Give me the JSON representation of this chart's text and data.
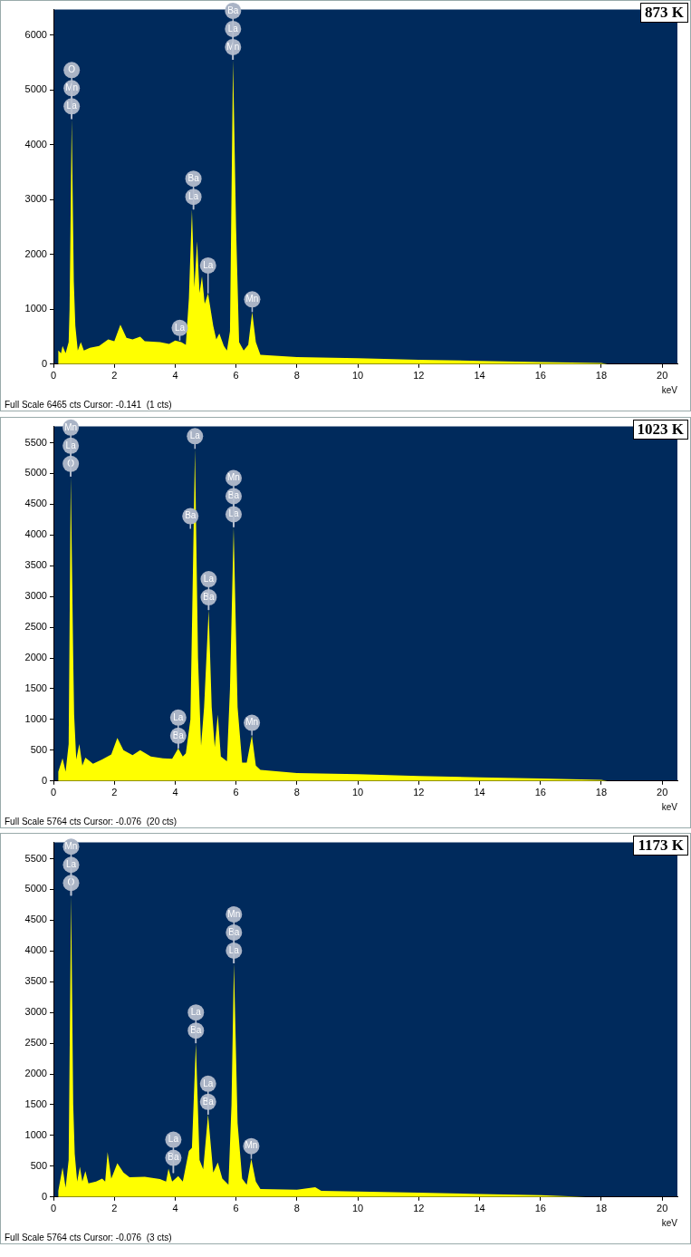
{
  "chart_data": [
    {
      "type": "area",
      "title": "873 K",
      "xlabel": "keV",
      "color": "#ffff00",
      "xlim": [
        0,
        20.5
      ],
      "xticks": [
        0,
        2,
        4,
        6,
        8,
        10,
        12,
        14,
        16,
        18,
        20
      ],
      "ylim": [
        0,
        6465
      ],
      "yticks": [
        0,
        1000,
        2000,
        3000,
        4000,
        5000,
        6000
      ],
      "legend": false,
      "grid": false,
      "x": [
        0.15,
        0.16,
        0.25,
        0.3,
        0.4,
        0.5,
        0.53,
        0.6,
        0.67,
        0.72,
        0.8,
        0.9,
        1.0,
        1.2,
        1.5,
        1.8,
        2.0,
        2.2,
        2.4,
        2.6,
        2.85,
        3.0,
        3.5,
        3.8,
        4.0,
        4.2,
        4.35,
        4.45,
        4.55,
        4.63,
        4.72,
        4.8,
        4.88,
        4.97,
        5.08,
        5.25,
        5.35,
        5.45,
        5.6,
        5.7,
        5.8,
        5.9,
        6.0,
        6.1,
        6.25,
        6.4,
        6.53,
        6.65,
        6.8,
        8,
        10,
        12,
        14,
        16,
        18,
        18.2
      ],
      "values": [
        0,
        250,
        200,
        330,
        200,
        400,
        1000,
        4470,
        1500,
        700,
        250,
        400,
        250,
        300,
        330,
        450,
        420,
        720,
        480,
        450,
        500,
        420,
        400,
        370,
        430,
        400,
        350,
        1200,
        2820,
        1400,
        2240,
        1300,
        1600,
        1100,
        1290,
        700,
        450,
        560,
        330,
        250,
        600,
        5550,
        2500,
        400,
        250,
        350,
        950,
        400,
        170,
        130,
        110,
        80,
        60,
        40,
        20,
        0
      ],
      "annotations": [
        "Full Scale 6465 cts Cursor: -0.141  (1 cts)",
        {
          "text": "La",
          "x": 0.6,
          "y": 4470
        },
        {
          "text": "Mn",
          "x": 0.6,
          "y": 4470
        },
        {
          "text": "O",
          "x": 0.6,
          "y": 4470
        },
        {
          "text": "La",
          "x": 4.15,
          "y": 430
        },
        {
          "text": "La",
          "x": 4.6,
          "y": 2820
        },
        {
          "text": "Ba",
          "x": 4.6,
          "y": 2820
        },
        {
          "text": "La",
          "x": 5.08,
          "y": 1290
        },
        {
          "text": "Mn",
          "x": 5.9,
          "y": 5550
        },
        {
          "text": "La",
          "x": 5.9,
          "y": 5550
        },
        {
          "text": "Ba",
          "x": 5.9,
          "y": 5550
        },
        {
          "text": "Mn",
          "x": 6.53,
          "y": 950
        }
      ]
    },
    {
      "type": "area",
      "title": "1023 K",
      "xlabel": "keV",
      "color": "#ffff00",
      "xlim": [
        0,
        20.5
      ],
      "xticks": [
        0,
        2,
        4,
        6,
        8,
        10,
        12,
        14,
        16,
        18,
        20
      ],
      "ylim": [
        0,
        5764
      ],
      "yticks": [
        0,
        500,
        1000,
        1500,
        2000,
        2500,
        3000,
        3500,
        4000,
        4500,
        5000,
        5500
      ],
      "legend": false,
      "grid": false,
      "x": [
        0.15,
        0.16,
        0.3,
        0.4,
        0.5,
        0.57,
        0.65,
        0.68,
        0.75,
        0.85,
        0.95,
        1.05,
        1.3,
        1.6,
        1.9,
        2.1,
        2.3,
        2.6,
        2.85,
        3.2,
        3.6,
        3.9,
        4.1,
        4.25,
        4.35,
        4.5,
        4.65,
        4.75,
        4.85,
        4.95,
        5.1,
        5.2,
        5.3,
        5.4,
        5.5,
        5.7,
        5.8,
        5.92,
        6.05,
        6.2,
        6.35,
        6.52,
        6.65,
        6.8,
        8,
        10,
        12,
        14,
        16,
        18,
        18.2
      ],
      "values": [
        0,
        150,
        370,
        150,
        600,
        4950,
        2000,
        1080,
        350,
        600,
        250,
        380,
        280,
        350,
        430,
        700,
        500,
        420,
        500,
        400,
        370,
        360,
        530,
        400,
        450,
        1000,
        5400,
        2000,
        570,
        1200,
        2780,
        1200,
        550,
        1080,
        400,
        320,
        1500,
        4130,
        1200,
        300,
        300,
        740,
        250,
        180,
        130,
        110,
        80,
        60,
        40,
        20,
        0
      ],
      "annotations": [
        "Full Scale 5764 cts Cursor: -0.076  (20 cts)",
        {
          "text": "O",
          "x": 0.57,
          "y": 4950
        },
        {
          "text": "La",
          "x": 0.57,
          "y": 4950
        },
        {
          "text": "Mn",
          "x": 0.57,
          "y": 4950
        },
        {
          "text": "Ba",
          "x": 4.1,
          "y": 530
        },
        {
          "text": "La",
          "x": 4.1,
          "y": 530
        },
        {
          "text": "Ba",
          "x": 4.5,
          "y": 4100
        },
        {
          "text": "La",
          "x": 4.65,
          "y": 5400
        },
        {
          "text": "Ba",
          "x": 5.1,
          "y": 2780
        },
        {
          "text": "La",
          "x": 5.1,
          "y": 2780
        },
        {
          "text": "La",
          "x": 5.92,
          "y": 4130
        },
        {
          "text": "Ba",
          "x": 5.92,
          "y": 4130
        },
        {
          "text": "Mn",
          "x": 5.92,
          "y": 4130
        },
        {
          "text": "Mn",
          "x": 6.52,
          "y": 740
        }
      ]
    },
    {
      "type": "area",
      "title": "1173 K",
      "xlabel": "keV",
      "color": "#ffff00",
      "xlim": [
        0,
        20.5
      ],
      "xticks": [
        0,
        2,
        4,
        6,
        8,
        10,
        12,
        14,
        16,
        18,
        20
      ],
      "ylim": [
        0,
        5764
      ],
      "yticks": [
        0,
        500,
        1000,
        1500,
        2000,
        2500,
        3000,
        3500,
        4000,
        4500,
        5000,
        5500
      ],
      "legend": false,
      "grid": false,
      "x": [
        0.15,
        0.16,
        0.3,
        0.4,
        0.5,
        0.58,
        0.65,
        0.7,
        0.78,
        0.87,
        0.95,
        1.05,
        1.15,
        1.4,
        1.6,
        1.7,
        1.78,
        1.9,
        2.1,
        2.3,
        2.5,
        3.0,
        3.5,
        3.7,
        3.78,
        3.9,
        4.1,
        4.25,
        4.45,
        4.55,
        4.68,
        4.8,
        4.92,
        5.08,
        5.25,
        5.4,
        5.55,
        5.75,
        5.85,
        5.93,
        6.05,
        6.2,
        6.35,
        6.5,
        6.65,
        6.8,
        8,
        8.6,
        8.8,
        10,
        12,
        14,
        16,
        17.5
      ],
      "values": [
        0,
        100,
        480,
        150,
        600,
        4900,
        1500,
        700,
        250,
        490,
        250,
        420,
        220,
        250,
        300,
        250,
        730,
        300,
        550,
        400,
        320,
        330,
        290,
        250,
        460,
        250,
        340,
        250,
        750,
        800,
        2500,
        600,
        450,
        1340,
        400,
        560,
        300,
        200,
        1500,
        3800,
        1200,
        300,
        200,
        620,
        250,
        130,
        120,
        160,
        100,
        90,
        70,
        50,
        30,
        0
      ],
      "annotations": [
        "Full Scale 5764 cts Cursor: -0.076  (3 cts)",
        {
          "text": "O",
          "x": 0.58,
          "y": 4900
        },
        {
          "text": "La",
          "x": 0.58,
          "y": 4900
        },
        {
          "text": "Mn",
          "x": 0.58,
          "y": 4900
        },
        {
          "text": "Ba",
          "x": 3.94,
          "y": 390
        },
        {
          "text": "La",
          "x": 3.94,
          "y": 390
        },
        {
          "text": "Ba",
          "x": 4.68,
          "y": 2500
        },
        {
          "text": "La",
          "x": 4.68,
          "y": 2500
        },
        {
          "text": "Ba",
          "x": 5.08,
          "y": 1340
        },
        {
          "text": "La",
          "x": 5.08,
          "y": 1340
        },
        {
          "text": "La",
          "x": 5.93,
          "y": 3800
        },
        {
          "text": "Ba",
          "x": 5.93,
          "y": 3800
        },
        {
          "text": "Mn",
          "x": 5.93,
          "y": 3800
        },
        {
          "text": "Mn",
          "x": 6.5,
          "y": 620
        }
      ]
    }
  ]
}
